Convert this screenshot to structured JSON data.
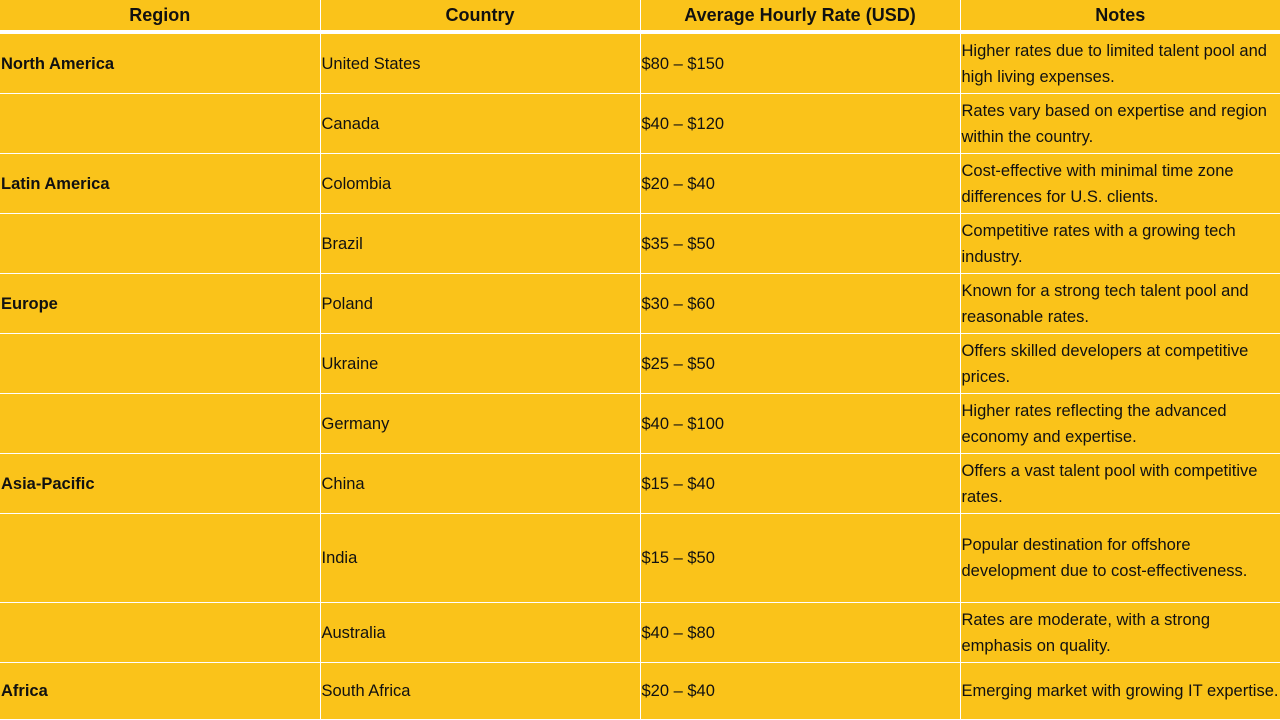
{
  "table": {
    "headers": [
      "Region",
      "Country",
      "Average Hourly Rate (USD)",
      "Notes"
    ],
    "rows": [
      {
        "region": "North America",
        "country": "United States",
        "rate": "$80 – $150",
        "notes": "Higher rates due to limited talent pool and high living expenses."
      },
      {
        "region": "",
        "country": "Canada",
        "rate": "$40 – $120",
        "notes": "Rates vary based on expertise and region within the country."
      },
      {
        "region": "Latin America",
        "country": "Colombia",
        "rate": "$20 – $40",
        "notes": "Cost-effective with minimal time zone differences for U.S. clients."
      },
      {
        "region": "",
        "country": "Brazil",
        "rate": "$35 – $50",
        "notes": "Competitive rates with a growing tech industry."
      },
      {
        "region": "Europe",
        "country": "Poland",
        "rate": "$30 – $60",
        "notes": "Known for a strong tech talent pool and reasonable rates."
      },
      {
        "region": "",
        "country": "Ukraine",
        "rate": "$25 – $50",
        "notes": "Offers skilled developers at competitive prices."
      },
      {
        "region": "",
        "country": "Germany",
        "rate": "$40 – $100",
        "notes": "Higher rates reflecting the advanced economy and expertise."
      },
      {
        "region": "Asia-Pacific",
        "country": "China",
        "rate": "$15 – $40",
        "notes": "Offers a vast talent pool with competitive rates."
      },
      {
        "region": "",
        "country": "India",
        "rate": "$15 – $50",
        "notes": "Popular destination for offshore development due to cost-effectiveness."
      },
      {
        "region": "",
        "country": "Australia",
        "rate": "$40 – $80",
        "notes": "Rates are moderate, with a strong emphasis on quality."
      },
      {
        "region": "Africa",
        "country": "South Africa",
        "rate": "$20 – $40",
        "notes": "Emerging market with growing IT expertise."
      }
    ]
  },
  "colors": {
    "background": "#FAC31A",
    "grid": "#FFFFFF",
    "text": "#111111"
  }
}
